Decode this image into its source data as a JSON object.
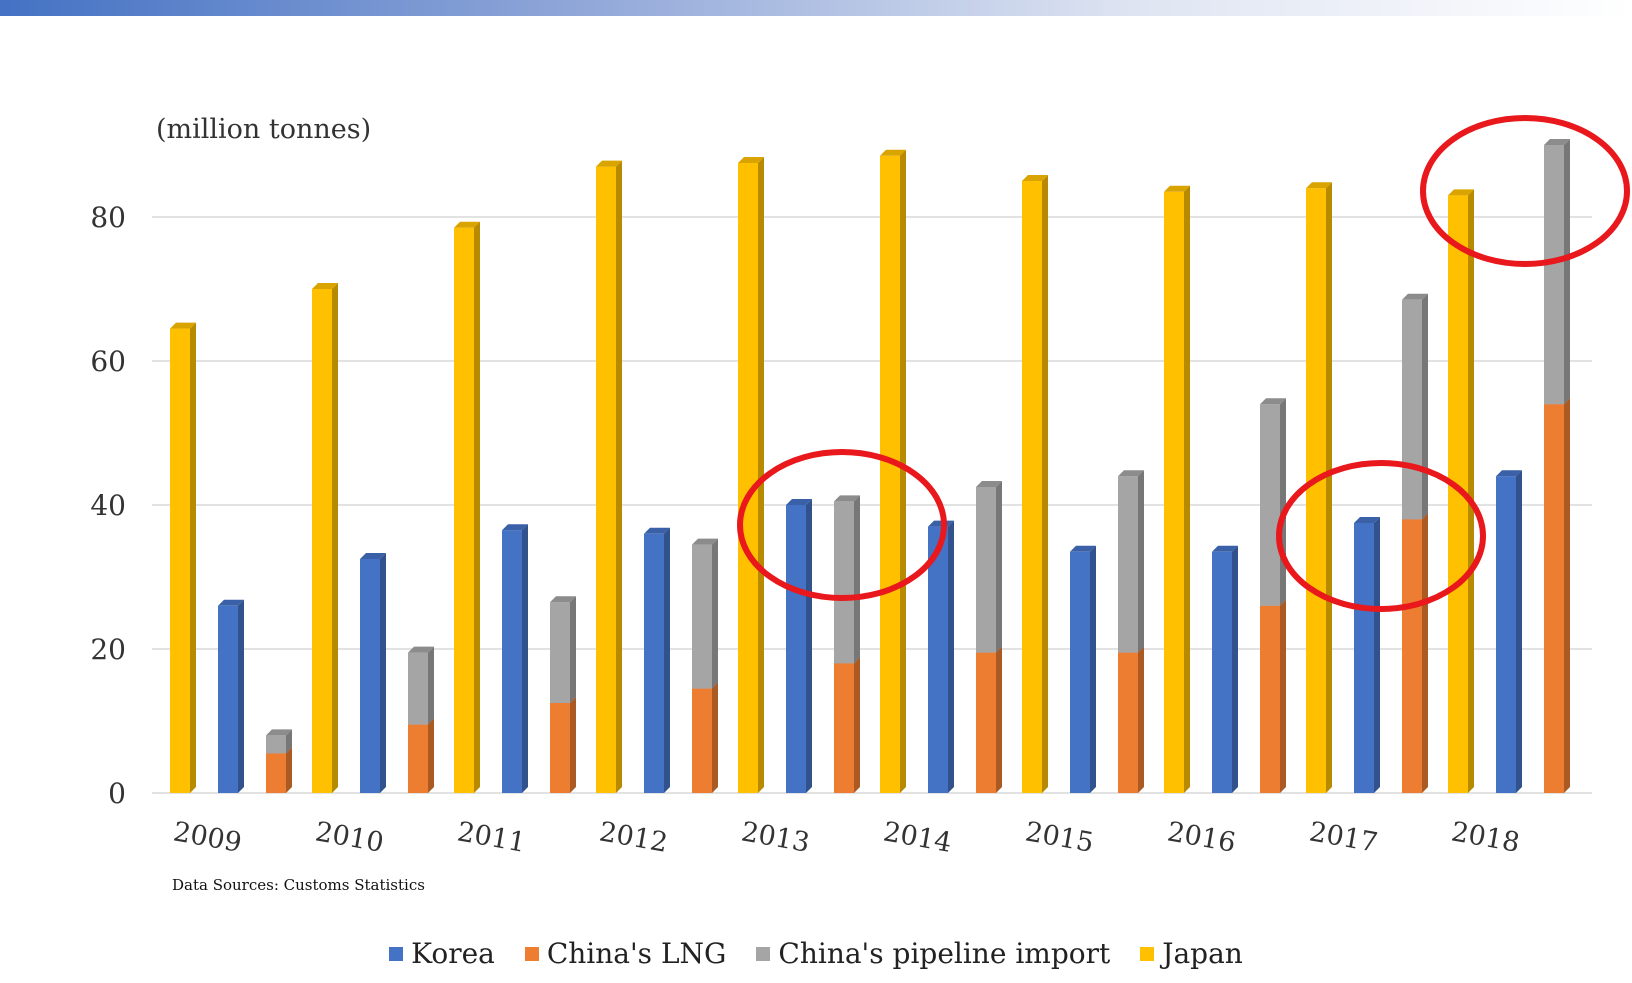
{
  "chart_data": {
    "type": "bar",
    "unit_label": "(million tonnes)",
    "source_note": "Data Sources: Customs Statistics",
    "ylim": [
      0,
      90
    ],
    "yticks": [
      0,
      20,
      40,
      60,
      80
    ],
    "ytick_labels": [
      "0",
      "20",
      "40",
      "60",
      "80"
    ],
    "grid": true,
    "legend_position": "bottom",
    "categories": [
      "2009",
      "2010",
      "2011",
      "2012",
      "2013",
      "2014",
      "2015",
      "2016",
      "2017",
      "2018"
    ],
    "series": [
      {
        "name": "Korea",
        "color": "#4472c4",
        "stack": "korea",
        "values": [
          26,
          32.5,
          36.5,
          36,
          40,
          37,
          33.5,
          33.5,
          37.5,
          44
        ]
      },
      {
        "name": "China's LNG",
        "color": "#ed7d31",
        "stack": "china",
        "values": [
          5.5,
          9.5,
          12.5,
          14.5,
          18,
          19.5,
          19.5,
          26,
          38,
          54
        ]
      },
      {
        "name": "China's pipeline import",
        "color": "#a5a5a5",
        "stack": "china",
        "values": [
          2.5,
          10,
          14,
          20,
          22.5,
          23,
          24.5,
          28,
          30.5,
          36
        ]
      },
      {
        "name": "Japan",
        "color": "#ffc000",
        "stack": "japan",
        "values": [
          64.5,
          70,
          78.5,
          87,
          87.5,
          88.5,
          85,
          83.5,
          84,
          83
        ]
      }
    ],
    "annotations": [
      {
        "shape": "ellipse",
        "color": "#e8181c",
        "marks": "2013 Korea and China's bars"
      },
      {
        "shape": "ellipse",
        "color": "#e8181c",
        "marks": "2017 Korea and China's bars"
      },
      {
        "shape": "ellipse",
        "color": "#e8181c",
        "marks": "2018 Japan and China's bars"
      }
    ]
  }
}
